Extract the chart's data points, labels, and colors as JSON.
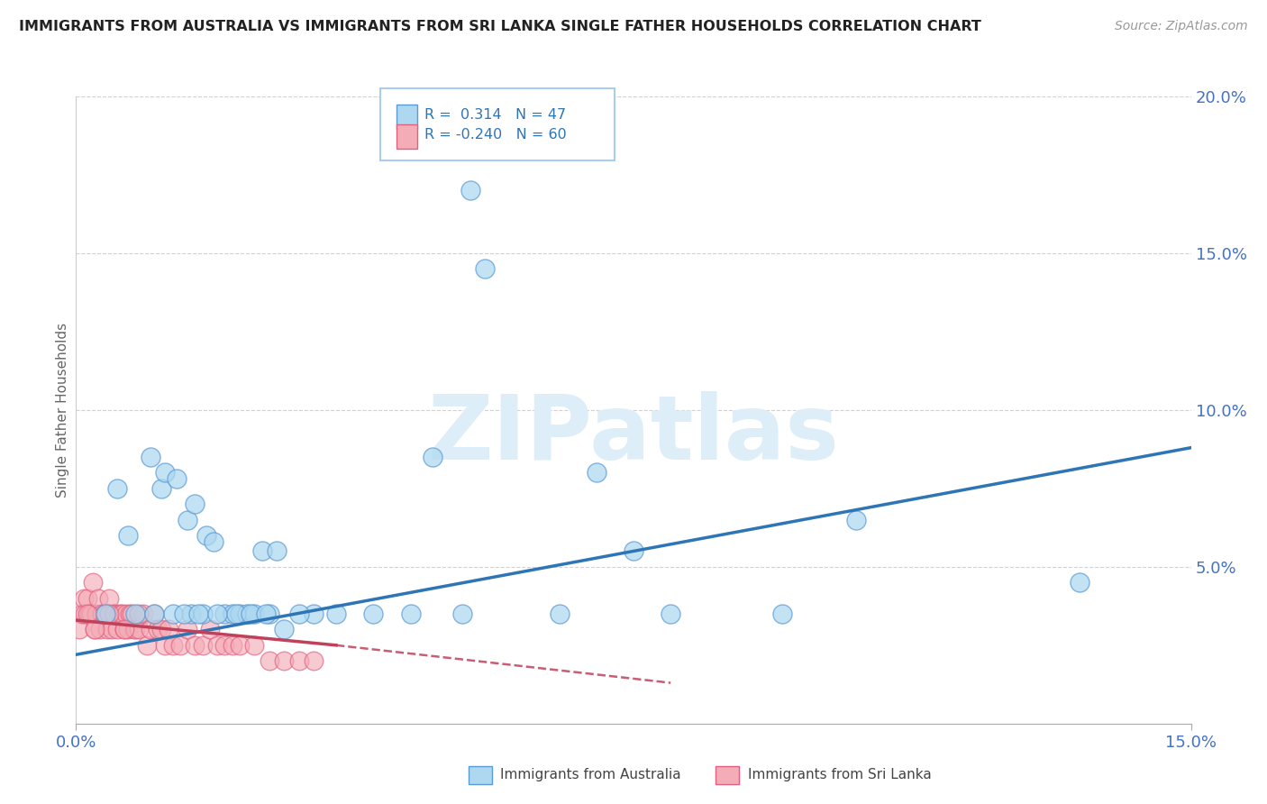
{
  "title": "IMMIGRANTS FROM AUSTRALIA VS IMMIGRANTS FROM SRI LANKA SINGLE FATHER HOUSEHOLDS CORRELATION CHART",
  "source": "Source: ZipAtlas.com",
  "ylabel_label": "Single Father Households",
  "legend_label1": "Immigrants from Australia",
  "legend_label2": "Immigrants from Sri Lanka",
  "r1": "0.314",
  "n1": "47",
  "r2": "-0.240",
  "n2": "60",
  "xlim": [
    0.0,
    15.0
  ],
  "ylim": [
    0.0,
    20.0
  ],
  "blue_color": "#ADD8F0",
  "blue_edge_color": "#5B9BD5",
  "blue_line_color": "#2E75B6",
  "pink_color": "#F4ACB7",
  "pink_edge_color": "#E06080",
  "pink_line_color": "#C0415A",
  "watermark_color": "#DDEEF8",
  "watermark": "ZIPatlas",
  "grid_color": "#CCCCCC",
  "tick_color": "#4472C4",
  "aus_x": [
    0.55,
    0.7,
    1.0,
    1.15,
    1.2,
    1.35,
    1.5,
    1.55,
    1.6,
    1.7,
    1.75,
    1.85,
    2.0,
    2.1,
    2.2,
    2.3,
    2.4,
    2.5,
    2.6,
    2.7,
    2.8,
    3.2,
    3.5,
    4.0,
    4.5,
    4.8,
    5.2,
    5.5,
    5.3,
    6.5,
    7.0,
    7.5,
    8.0,
    9.5,
    10.5,
    0.4,
    0.8,
    1.05,
    1.3,
    1.45,
    1.65,
    1.9,
    2.15,
    2.35,
    2.55,
    3.0,
    13.5
  ],
  "aus_y": [
    7.5,
    6.0,
    8.5,
    7.5,
    8.0,
    7.8,
    6.5,
    3.5,
    7.0,
    3.5,
    6.0,
    5.8,
    3.5,
    3.5,
    3.5,
    3.5,
    3.5,
    5.5,
    3.5,
    5.5,
    3.0,
    3.5,
    3.5,
    3.5,
    3.5,
    8.5,
    3.5,
    14.5,
    17.0,
    3.5,
    8.0,
    5.5,
    3.5,
    3.5,
    6.5,
    3.5,
    3.5,
    3.5,
    3.5,
    3.5,
    3.5,
    3.5,
    3.5,
    3.5,
    3.5,
    3.5,
    4.5
  ],
  "sl_x": [
    0.05,
    0.08,
    0.1,
    0.12,
    0.15,
    0.18,
    0.2,
    0.22,
    0.25,
    0.28,
    0.3,
    0.32,
    0.35,
    0.38,
    0.4,
    0.42,
    0.45,
    0.48,
    0.5,
    0.52,
    0.55,
    0.58,
    0.6,
    0.62,
    0.65,
    0.68,
    0.7,
    0.72,
    0.75,
    0.78,
    0.8,
    0.85,
    0.9,
    0.95,
    1.0,
    1.05,
    1.1,
    1.15,
    1.2,
    1.25,
    1.3,
    1.4,
    1.5,
    1.6,
    1.7,
    1.8,
    1.9,
    2.0,
    2.1,
    2.2,
    2.4,
    2.6,
    2.8,
    3.0,
    3.2,
    0.15,
    0.25,
    0.45,
    0.65,
    0.85
  ],
  "sl_y": [
    3.0,
    3.5,
    4.0,
    3.5,
    4.0,
    3.5,
    3.5,
    4.5,
    3.0,
    3.5,
    4.0,
    3.0,
    3.5,
    3.5,
    3.5,
    3.0,
    4.0,
    3.0,
    3.5,
    3.5,
    3.0,
    3.5,
    3.5,
    3.5,
    3.0,
    3.5,
    3.0,
    3.5,
    3.5,
    3.0,
    3.0,
    3.0,
    3.5,
    2.5,
    3.0,
    3.5,
    3.0,
    3.0,
    2.5,
    3.0,
    2.5,
    2.5,
    3.0,
    2.5,
    2.5,
    3.0,
    2.5,
    2.5,
    2.5,
    2.5,
    2.5,
    2.0,
    2.0,
    2.0,
    2.0,
    3.5,
    3.0,
    3.5,
    3.0,
    3.5
  ],
  "aus_trend_x0": 0.0,
  "aus_trend_y0": 2.2,
  "aus_trend_x1": 15.0,
  "aus_trend_y1": 8.8,
  "sl_solid_x0": 0.0,
  "sl_solid_y0": 3.3,
  "sl_solid_x1": 3.5,
  "sl_solid_y1": 2.5,
  "sl_dash_x0": 3.5,
  "sl_dash_y0": 2.5,
  "sl_dash_x1": 8.0,
  "sl_dash_y1": 1.3
}
